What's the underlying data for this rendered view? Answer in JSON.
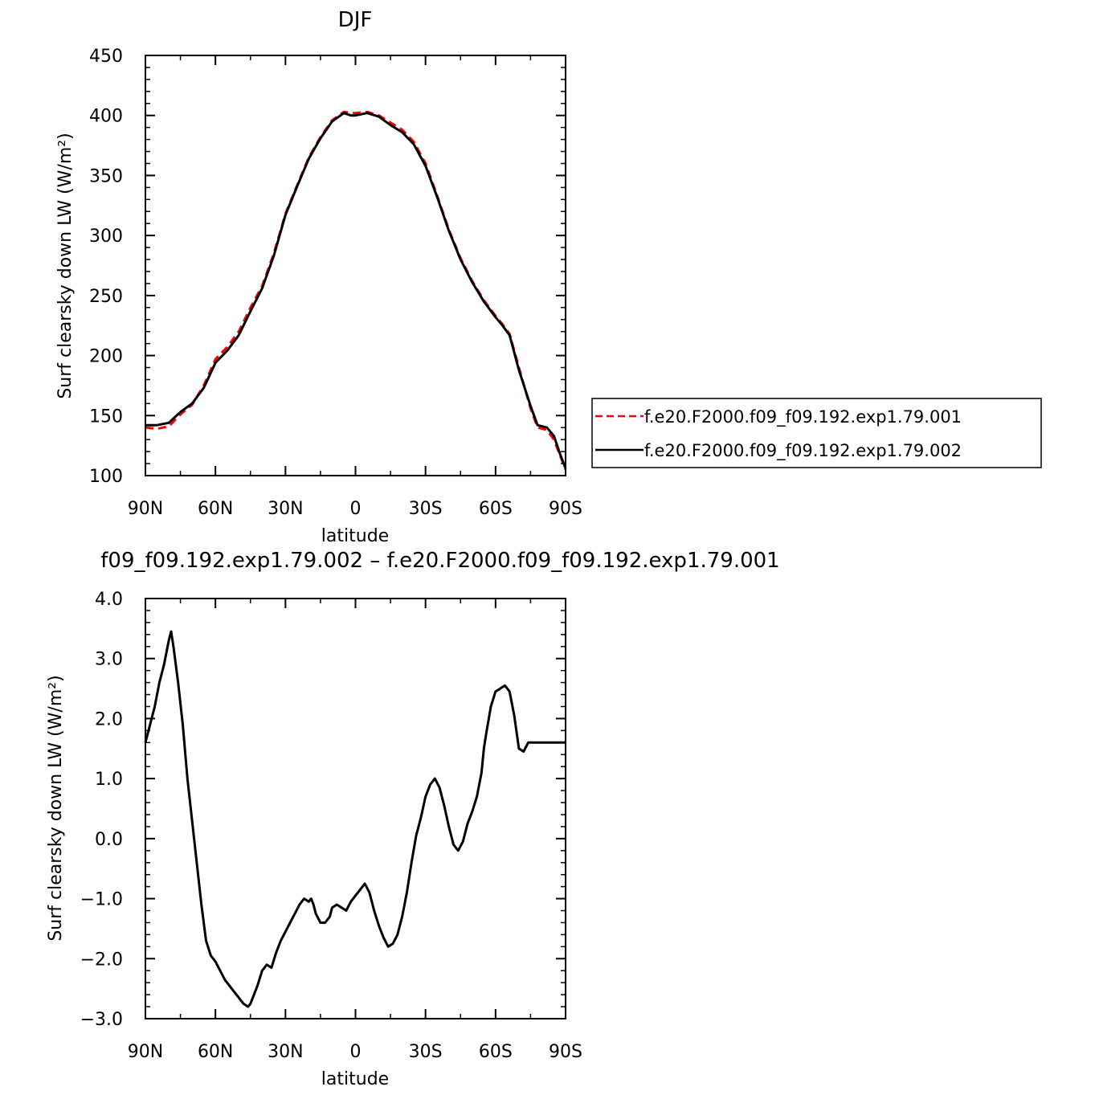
{
  "chart_data": [
    {
      "type": "line",
      "title": "DJF",
      "xlabel": "latitude",
      "ylabel": "Surf clearsky down LW (W/m²)",
      "xlim": [
        90,
        -90
      ],
      "ylim": [
        100,
        450
      ],
      "xticks": [
        {
          "value": 90,
          "label": "90N"
        },
        {
          "value": 60,
          "label": "60N"
        },
        {
          "value": 30,
          "label": "30N"
        },
        {
          "value": 0,
          "label": "0"
        },
        {
          "value": -30,
          "label": "30S"
        },
        {
          "value": -60,
          "label": "60S"
        },
        {
          "value": -90,
          "label": "90S"
        }
      ],
      "yticks": [
        {
          "value": 100,
          "label": "100"
        },
        {
          "value": 150,
          "label": "150"
        },
        {
          "value": 200,
          "label": "200"
        },
        {
          "value": 250,
          "label": "250"
        },
        {
          "value": 300,
          "label": "300"
        },
        {
          "value": 350,
          "label": "350"
        },
        {
          "value": 400,
          "label": "400"
        },
        {
          "value": 450,
          "label": "450"
        }
      ],
      "legend": "right",
      "grid": false,
      "series": [
        {
          "name": "f.e20.F2000.f09_f09.192.exp1.79.001",
          "color": "#ff0000",
          "dash": true,
          "x": [
            90,
            85,
            80,
            75,
            70,
            65,
            60,
            55,
            50,
            45,
            40,
            35,
            30,
            25,
            20,
            15,
            10,
            5,
            2,
            0,
            -5,
            -10,
            -15,
            -20,
            -25,
            -30,
            -35,
            -40,
            -45,
            -50,
            -55,
            -60,
            -63,
            -66,
            -70,
            -75,
            -78,
            -82,
            -85,
            -88,
            -90
          ],
          "y": [
            140,
            139,
            141,
            151,
            159,
            175,
            197,
            207,
            220,
            240,
            258,
            285,
            318,
            342,
            365,
            382,
            396,
            403,
            402,
            402,
            403,
            400,
            394,
            388,
            378,
            360,
            333,
            305,
            281,
            262,
            246,
            233,
            226,
            218,
            190,
            156,
            140,
            138,
            130,
            115,
            105
          ]
        },
        {
          "name": "f.e20.F2000.f09_f09.192.exp1.79.002",
          "color": "#000000",
          "dash": false,
          "x": [
            90,
            85,
            80,
            75,
            70,
            65,
            60,
            55,
            50,
            45,
            40,
            35,
            30,
            25,
            20,
            15,
            10,
            5,
            2,
            0,
            -5,
            -10,
            -15,
            -20,
            -25,
            -30,
            -35,
            -40,
            -45,
            -50,
            -55,
            -60,
            -63,
            -66,
            -70,
            -75,
            -78,
            -82,
            -85,
            -88,
            -90
          ],
          "y": [
            142,
            142,
            144,
            153,
            160,
            173,
            194,
            204,
            217,
            237,
            256,
            283,
            317,
            341,
            364,
            381,
            395,
            402,
            400,
            400,
            402,
            399,
            392,
            386,
            376,
            358,
            332,
            304,
            280,
            261,
            245,
            232,
            225,
            217,
            188,
            158,
            142,
            140,
            133,
            116,
            106
          ]
        }
      ]
    },
    {
      "type": "line",
      "title": "f09_f09.192.exp1.79.002 – f.e20.F2000.f09_f09.192.exp1.79.001",
      "xlabel": "latitude",
      "ylabel": "Surf clearsky down LW (W/m²)",
      "xlim": [
        90,
        -90
      ],
      "ylim": [
        -3.0,
        4.0
      ],
      "xticks": [
        {
          "value": 90,
          "label": "90N"
        },
        {
          "value": 60,
          "label": "60N"
        },
        {
          "value": 30,
          "label": "30N"
        },
        {
          "value": 0,
          "label": "0"
        },
        {
          "value": -30,
          "label": "30S"
        },
        {
          "value": -60,
          "label": "60S"
        },
        {
          "value": -90,
          "label": "90S"
        }
      ],
      "yticks": [
        {
          "value": -3,
          "label": "−3.0"
        },
        {
          "value": -2,
          "label": "−2.0"
        },
        {
          "value": -1,
          "label": "−1.0"
        },
        {
          "value": 0,
          "label": "0.0"
        },
        {
          "value": 1,
          "label": "1.0"
        },
        {
          "value": 2,
          "label": "2.0"
        },
        {
          "value": 3,
          "label": "3.0"
        },
        {
          "value": 4,
          "label": "4.0"
        }
      ],
      "grid": false,
      "series": [
        {
          "color": "#000000",
          "dash": false,
          "x": [
            90,
            88,
            86,
            84,
            82,
            80,
            79,
            78,
            76,
            74,
            72,
            70,
            68,
            66,
            64,
            62,
            60,
            58,
            56,
            54,
            52,
            50,
            48,
            46,
            45,
            44,
            42,
            40,
            38,
            36,
            34,
            32,
            30,
            28,
            26,
            24,
            22,
            20,
            19,
            18,
            17,
            15,
            13,
            11,
            10,
            8,
            6,
            4,
            2,
            0,
            -2,
            -4,
            -6,
            -8,
            -10,
            -12,
            -14,
            -16,
            -18,
            -20,
            -22,
            -24,
            -26,
            -28,
            -30,
            -32,
            -34,
            -36,
            -38,
            -40,
            -42,
            -44,
            -46,
            -48,
            -50,
            -52,
            -54,
            -55,
            -56,
            -58,
            -60,
            -62,
            -64,
            -66,
            -68,
            -70,
            -72,
            -74,
            -76,
            -78,
            -80,
            -82,
            -84,
            -86,
            -88,
            -90
          ],
          "y": [
            1.6,
            1.9,
            2.2,
            2.6,
            2.9,
            3.3,
            3.45,
            3.2,
            2.6,
            1.9,
            1.0,
            0.3,
            -0.4,
            -1.1,
            -1.7,
            -1.95,
            -2.05,
            -2.2,
            -2.35,
            -2.45,
            -2.55,
            -2.65,
            -2.75,
            -2.8,
            -2.75,
            -2.65,
            -2.45,
            -2.2,
            -2.1,
            -2.15,
            -1.9,
            -1.7,
            -1.55,
            -1.4,
            -1.25,
            -1.1,
            -1.0,
            -1.05,
            -1.0,
            -1.1,
            -1.25,
            -1.4,
            -1.4,
            -1.3,
            -1.15,
            -1.1,
            -1.15,
            -1.2,
            -1.05,
            -0.95,
            -0.85,
            -0.75,
            -0.9,
            -1.2,
            -1.45,
            -1.65,
            -1.8,
            -1.75,
            -1.6,
            -1.3,
            -0.9,
            -0.4,
            0.05,
            0.35,
            0.7,
            0.9,
            1.0,
            0.85,
            0.55,
            0.2,
            -0.1,
            -0.2,
            -0.05,
            0.25,
            0.45,
            0.7,
            1.1,
            1.5,
            1.75,
            2.2,
            2.45,
            2.5,
            2.55,
            2.45,
            2.05,
            1.5,
            1.45,
            1.6,
            1.6,
            1.6,
            1.6,
            1.6,
            1.6,
            1.6,
            1.6,
            1.6
          ]
        }
      ]
    }
  ]
}
